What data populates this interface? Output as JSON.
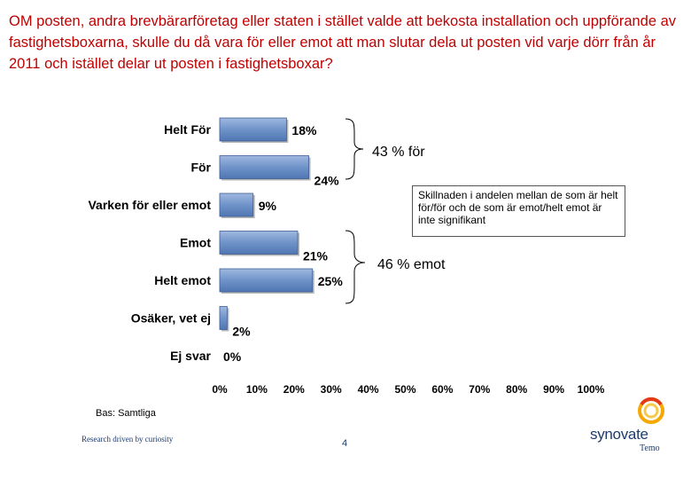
{
  "title": "OM posten, andra brevbärarföretag eller staten i stället valde att bekosta installation och uppförande av fastighetsboxarna, skulle du då vara för eller emot att man slutar dela ut posten vid varje dörr från år 2011 och istället delar ut posten i fastighetsboxar?",
  "chart_data": {
    "type": "bar",
    "orientation": "horizontal",
    "categories": [
      "Helt För",
      "För",
      "Varken för eller emot",
      "Emot",
      "Helt emot",
      "Osäker, vet ej",
      "Ej svar"
    ],
    "values": [
      18,
      24,
      9,
      21,
      25,
      2,
      0
    ],
    "value_labels": [
      "18%",
      "24%",
      "9%",
      "21%",
      "25%",
      "2%",
      "0%"
    ],
    "x_ticks": [
      "0%",
      "10%",
      "20%",
      "30%",
      "40%",
      "50%",
      "60%",
      "70%",
      "80%",
      "90%",
      "100%"
    ],
    "xlim": [
      0,
      100
    ],
    "bar_color": "#6f93c9",
    "grid": false
  },
  "callouts": {
    "for_label": "43 % för",
    "against_label": "46 % emot",
    "note": "Skillnaden i andelen mellan de som är helt för/för och de som är emot/helt emot är inte signifikant"
  },
  "footer": {
    "base": "Bas: Samtliga",
    "tagline": "Research driven by curiosity",
    "page": "4",
    "logo": "synovate",
    "logo_sub": "Temo"
  }
}
